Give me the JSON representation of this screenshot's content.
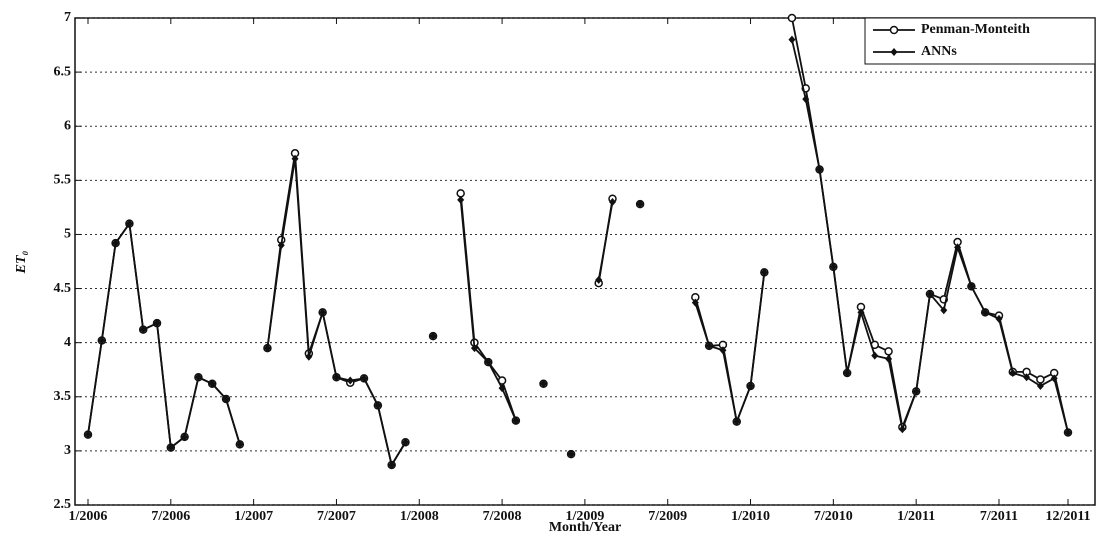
{
  "chart_data": {
    "type": "line",
    "x_label": "Month/Year",
    "y_label": "ET₀",
    "categories": [
      "1/2006",
      null,
      null,
      null,
      null,
      null,
      "7/2006",
      null,
      null,
      null,
      null,
      null,
      "1/2007",
      null,
      null,
      null,
      null,
      null,
      "7/2007",
      null,
      null,
      null,
      null,
      null,
      "1/2008",
      null,
      null,
      null,
      null,
      null,
      "7/2008",
      null,
      null,
      null,
      null,
      null,
      "1/2009",
      null,
      null,
      null,
      null,
      null,
      "7/2009",
      null,
      null,
      null,
      null,
      null,
      "1/2010",
      null,
      null,
      null,
      null,
      null,
      "7/2010",
      null,
      null,
      null,
      null,
      null,
      "1/2011",
      null,
      null,
      null,
      null,
      null,
      "7/2011",
      null,
      null,
      null,
      null,
      "12/2011"
    ],
    "series": [
      {
        "name": "Penman-Monteith",
        "color": "#111111",
        "marker": "circle",
        "values": [
          3.15,
          4.02,
          4.92,
          5.1,
          4.12,
          4.18,
          3.03,
          3.13,
          3.68,
          3.62,
          3.48,
          3.06,
          null,
          3.95,
          4.95,
          5.75,
          3.9,
          4.28,
          3.68,
          3.63,
          3.67,
          3.42,
          2.87,
          3.08,
          null,
          4.06,
          null,
          5.38,
          4.0,
          3.82,
          3.65,
          3.28,
          null,
          3.62,
          null,
          2.97,
          null,
          4.55,
          5.33,
          null,
          5.28,
          null,
          null,
          null,
          4.42,
          3.97,
          3.98,
          3.27,
          3.6,
          4.65,
          null,
          7.0,
          6.35,
          5.6,
          4.7,
          3.72,
          4.33,
          3.98,
          3.92,
          3.22,
          3.55,
          4.45,
          4.4,
          4.93,
          4.52,
          4.28,
          4.25,
          3.73,
          3.73,
          3.66,
          3.72,
          3.17
        ]
      },
      {
        "name": "ANNs",
        "color": "#111111",
        "marker": "diamond",
        "values": [
          3.15,
          4.02,
          4.92,
          5.1,
          4.12,
          4.18,
          3.03,
          3.13,
          3.68,
          3.62,
          3.48,
          3.06,
          null,
          3.95,
          4.9,
          5.7,
          3.87,
          4.28,
          3.68,
          3.65,
          3.67,
          3.42,
          2.87,
          3.08,
          null,
          4.06,
          null,
          5.32,
          3.95,
          3.82,
          3.58,
          3.28,
          null,
          3.62,
          null,
          2.97,
          null,
          4.58,
          5.3,
          null,
          5.28,
          null,
          null,
          null,
          4.37,
          3.97,
          3.93,
          3.27,
          3.6,
          4.65,
          null,
          6.8,
          6.25,
          5.6,
          4.7,
          3.72,
          4.28,
          3.88,
          3.85,
          3.2,
          3.55,
          4.45,
          4.3,
          4.88,
          4.52,
          4.28,
          4.22,
          3.72,
          3.68,
          3.6,
          3.67,
          3.17
        ]
      }
    ],
    "ylim": [
      2.5,
      7
    ],
    "yticks": [
      2.5,
      3,
      3.5,
      4,
      4.5,
      5,
      5.5,
      6,
      6.5,
      7
    ],
    "grid": true,
    "legend": "top-right"
  }
}
